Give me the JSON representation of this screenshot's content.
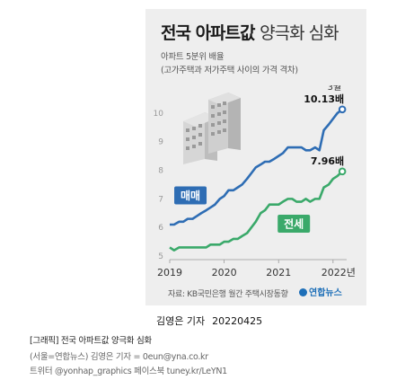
{
  "infographic": {
    "title_bold": "전국 아파트값",
    "title_light": "양극화 심화",
    "subtitle": "아파트 5분위 배율",
    "subtitle_note": "(고가주택과 저가주택 사이의 가격 격차)",
    "source": "자료: KB국민은행 월간 주택시장동향",
    "logo": "연합뉴스"
  },
  "byline": {
    "author": "김영은 기자",
    "date": "20220425"
  },
  "caption": {
    "headline": "[그래픽] 전국 아파트값 양극화 심화",
    "credit": "(서울=연합뉴스) 김영은 기자 = 0eun@yna.co.kr",
    "social": "트위터 @yonhap_graphics 페이스북 tuney.kr/LeYN1"
  },
  "colors": {
    "sale": "#2e6db4",
    "jeonse": "#3aa96a",
    "label_box_sale": "#2e6db4",
    "label_box_jeonse": "#3aa96a",
    "background": "#eeeeee"
  },
  "icons": {
    "illustration": "apartment-buildings-icon"
  },
  "chart_data": {
    "type": "line",
    "ylim": [
      5,
      10.5
    ],
    "yticks": [
      5,
      6,
      7,
      8,
      9,
      10
    ],
    "xlim": [
      2019.0,
      2022.25
    ],
    "xticks": [
      {
        "value": 2019,
        "label": "2019"
      },
      {
        "value": 2020,
        "label": "2020"
      },
      {
        "value": 2021,
        "label": "2021"
      },
      {
        "value": 2022,
        "label": "2022년"
      }
    ],
    "grid": false,
    "series": [
      {
        "name": "매매",
        "values": [
          [
            2019.0,
            6.1
          ],
          [
            2019.08,
            6.1
          ],
          [
            2019.17,
            6.2
          ],
          [
            2019.25,
            6.2
          ],
          [
            2019.33,
            6.3
          ],
          [
            2019.42,
            6.3
          ],
          [
            2019.5,
            6.4
          ],
          [
            2019.58,
            6.5
          ],
          [
            2019.67,
            6.6
          ],
          [
            2019.75,
            6.7
          ],
          [
            2019.83,
            6.8
          ],
          [
            2019.92,
            7.0
          ],
          [
            2020.0,
            7.1
          ],
          [
            2020.08,
            7.3
          ],
          [
            2020.17,
            7.3
          ],
          [
            2020.25,
            7.4
          ],
          [
            2020.33,
            7.5
          ],
          [
            2020.42,
            7.7
          ],
          [
            2020.5,
            7.9
          ],
          [
            2020.58,
            8.1
          ],
          [
            2020.67,
            8.2
          ],
          [
            2020.75,
            8.3
          ],
          [
            2020.83,
            8.3
          ],
          [
            2020.92,
            8.4
          ],
          [
            2021.0,
            8.5
          ],
          [
            2021.08,
            8.6
          ],
          [
            2021.17,
            8.8
          ],
          [
            2021.25,
            8.8
          ],
          [
            2021.33,
            8.8
          ],
          [
            2021.42,
            8.8
          ],
          [
            2021.5,
            8.7
          ],
          [
            2021.58,
            8.7
          ],
          [
            2021.67,
            8.8
          ],
          [
            2021.75,
            8.7
          ],
          [
            2021.83,
            9.4
          ],
          [
            2021.92,
            9.6
          ],
          [
            2022.0,
            9.8
          ],
          [
            2022.08,
            10.0
          ],
          [
            2022.17,
            10.13
          ]
        ],
        "end_label": "10.13배",
        "end_period": "3월"
      },
      {
        "name": "전세",
        "values": [
          [
            2019.0,
            5.3
          ],
          [
            2019.08,
            5.2
          ],
          [
            2019.17,
            5.3
          ],
          [
            2019.25,
            5.3
          ],
          [
            2019.33,
            5.3
          ],
          [
            2019.42,
            5.3
          ],
          [
            2019.5,
            5.3
          ],
          [
            2019.58,
            5.3
          ],
          [
            2019.67,
            5.3
          ],
          [
            2019.75,
            5.4
          ],
          [
            2019.83,
            5.4
          ],
          [
            2019.92,
            5.4
          ],
          [
            2020.0,
            5.5
          ],
          [
            2020.08,
            5.5
          ],
          [
            2020.17,
            5.6
          ],
          [
            2020.25,
            5.6
          ],
          [
            2020.33,
            5.7
          ],
          [
            2020.42,
            5.8
          ],
          [
            2020.5,
            6.0
          ],
          [
            2020.58,
            6.2
          ],
          [
            2020.67,
            6.5
          ],
          [
            2020.75,
            6.6
          ],
          [
            2020.83,
            6.8
          ],
          [
            2020.92,
            6.8
          ],
          [
            2021.0,
            6.8
          ],
          [
            2021.08,
            6.9
          ],
          [
            2021.17,
            7.0
          ],
          [
            2021.25,
            7.0
          ],
          [
            2021.33,
            6.9
          ],
          [
            2021.42,
            6.9
          ],
          [
            2021.5,
            7.0
          ],
          [
            2021.58,
            6.9
          ],
          [
            2021.67,
            7.0
          ],
          [
            2021.75,
            7.0
          ],
          [
            2021.83,
            7.4
          ],
          [
            2021.92,
            7.5
          ],
          [
            2022.0,
            7.7
          ],
          [
            2022.08,
            7.8
          ],
          [
            2022.17,
            7.96
          ]
        ],
        "end_label": "7.96배"
      }
    ]
  }
}
